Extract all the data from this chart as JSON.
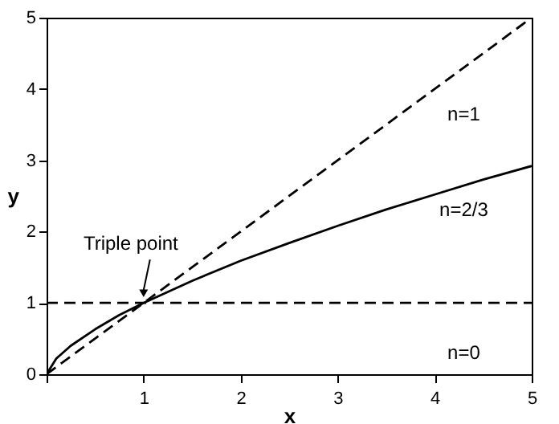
{
  "chart_data": {
    "type": "line",
    "xlabel": "x",
    "ylabel": "y",
    "xlim": [
      0,
      5
    ],
    "ylim": [
      0,
      5
    ],
    "xticks": [
      {
        "value": 0,
        "label": null
      },
      1,
      2,
      3,
      4,
      5
    ],
    "yticks": [
      0,
      1,
      2,
      3,
      4,
      5
    ],
    "grid": false,
    "legend": false,
    "marker": "none",
    "series": [
      {
        "name": "n=1",
        "color": "#000000",
        "line_style": "dashed",
        "x": [
          0,
          5
        ],
        "values": [
          0,
          5
        ]
      },
      {
        "name": "n=2/3",
        "color": "#000000",
        "line_style": "solid",
        "x": [
          0,
          0.1,
          0.25,
          0.5,
          0.75,
          1,
          1.5,
          2,
          2.5,
          3,
          3.5,
          4,
          4.5,
          5
        ],
        "values": [
          0,
          0.22,
          0.4,
          0.63,
          0.83,
          1,
          1.31,
          1.59,
          1.84,
          2.08,
          2.31,
          2.52,
          2.73,
          2.92
        ]
      },
      {
        "name": "n=0",
        "color": "#000000",
        "line_style": "dashed",
        "x": [
          0,
          5
        ],
        "values": [
          1,
          1
        ]
      }
    ],
    "annotations": [
      {
        "text": "Triple point",
        "x": 1,
        "y": 1
      }
    ]
  }
}
